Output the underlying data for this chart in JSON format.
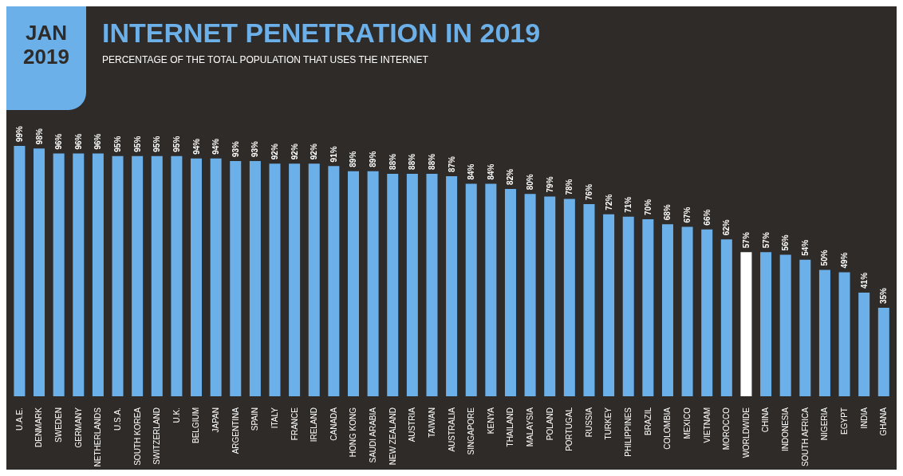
{
  "chart_data": {
    "type": "bar",
    "title": "INTERNET PENETRATION IN 2019",
    "subtitle": "PERCENTAGE OF THE TOTAL POPULATION THAT USES THE INTERNET",
    "annotations": [
      "JAN 2019"
    ],
    "categories": [
      "U.A.E.",
      "DENMARK",
      "SWEDEN",
      "GERMANY",
      "NETHERLANDS",
      "U.S.A.",
      "SOUTH KOREA",
      "SWITZERLAND",
      "U.K.",
      "BELGIUM",
      "JAPAN",
      "ARGENTINA",
      "SPAIN",
      "ITALY",
      "FRANCE",
      "IRELAND",
      "CANADA",
      "HONG KONG",
      "SAUDI ARABIA",
      "NEW ZEALAND",
      "AUSTRIA",
      "TAIWAN",
      "AUSTRALIA",
      "SINGAPORE",
      "KENYA",
      "THAILAND",
      "MALAYSIA",
      "POLAND",
      "PORTUGAL",
      "RUSSIA",
      "TURKEY",
      "PHILIPPINES",
      "BRAZIL",
      "COLOMBIA",
      "MEXICO",
      "VIETNAM",
      "MOROCCO",
      "WORLDWIDE",
      "CHINA",
      "INDONESIA",
      "SOUTH AFRICA",
      "NIGERIA",
      "EGYPT",
      "INDIA",
      "GHANA"
    ],
    "values": [
      99,
      98,
      96,
      96,
      96,
      95,
      95,
      95,
      95,
      94,
      94,
      93,
      93,
      92,
      92,
      92,
      91,
      89,
      89,
      88,
      88,
      88,
      87,
      84,
      84,
      82,
      80,
      79,
      78,
      76,
      72,
      71,
      70,
      68,
      67,
      66,
      62,
      57,
      57,
      56,
      54,
      50,
      49,
      41,
      35
    ],
    "value_labels": [
      "99%",
      "98%",
      "96%",
      "96%",
      "96%",
      "95%",
      "95%",
      "95%",
      "95%",
      "94%",
      "94%",
      "93%",
      "93%",
      "92%",
      "92%",
      "92%",
      "91%",
      "89%",
      "89%",
      "88%",
      "88%",
      "88%",
      "87%",
      "84%",
      "84%",
      "82%",
      "80%",
      "79%",
      "78%",
      "76%",
      "72%",
      "71%",
      "70%",
      "68%",
      "67%",
      "66%",
      "62%",
      "57%",
      "57%",
      "56%",
      "54%",
      "50%",
      "49%",
      "41%",
      "35%"
    ],
    "colors": [
      "#6cb0ea",
      "#6cb0ea",
      "#6cb0ea",
      "#6cb0ea",
      "#6cb0ea",
      "#6cb0ea",
      "#6cb0ea",
      "#6cb0ea",
      "#6cb0ea",
      "#6cb0ea",
      "#6cb0ea",
      "#6cb0ea",
      "#6cb0ea",
      "#6cb0ea",
      "#6cb0ea",
      "#6cb0ea",
      "#6cb0ea",
      "#6cb0ea",
      "#6cb0ea",
      "#6cb0ea",
      "#6cb0ea",
      "#6cb0ea",
      "#6cb0ea",
      "#6cb0ea",
      "#6cb0ea",
      "#6cb0ea",
      "#6cb0ea",
      "#6cb0ea",
      "#6cb0ea",
      "#6cb0ea",
      "#6cb0ea",
      "#6cb0ea",
      "#6cb0ea",
      "#6cb0ea",
      "#6cb0ea",
      "#6cb0ea",
      "#6cb0ea",
      "#ffffff",
      "#6cb0ea",
      "#6cb0ea",
      "#6cb0ea",
      "#6cb0ea",
      "#6cb0ea",
      "#6cb0ea",
      "#6cb0ea"
    ]
  }
}
